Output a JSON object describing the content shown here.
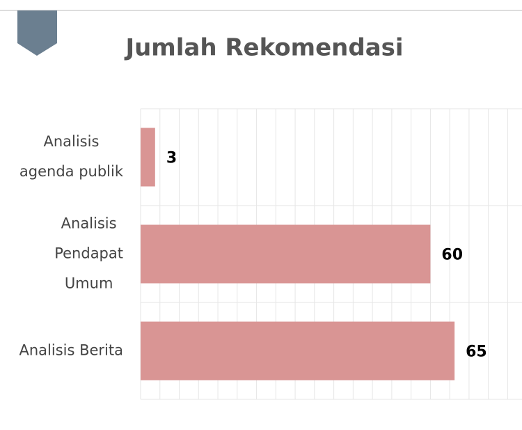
{
  "chart_data": {
    "type": "bar",
    "orientation": "horizontal",
    "title": "Jumlah Rekomendasi",
    "categories": [
      "Analisis agenda publik",
      "Analisis Pendapat Umum",
      "Analisis Berita"
    ],
    "values": [
      3,
      60,
      65
    ],
    "color": "#d99594",
    "xlim": [
      0,
      80
    ],
    "xticks": [
      0,
      4,
      8,
      12,
      16,
      20,
      24,
      28,
      32,
      36,
      40,
      44,
      48,
      52,
      56,
      60,
      64,
      68,
      72,
      76,
      80
    ],
    "grid": true
  }
}
